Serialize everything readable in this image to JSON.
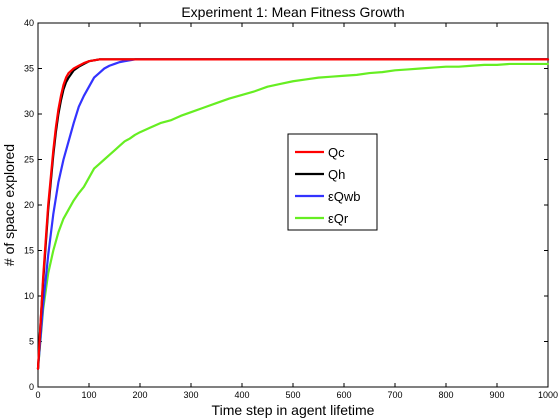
{
  "chart_data": {
    "type": "line",
    "title": "Experiment 1: Mean Fitness Growth",
    "xlabel": "Time step in agent lifetime",
    "ylabel": "# of space explored",
    "xlim": [
      0,
      1000
    ],
    "ylim": [
      0,
      40
    ],
    "xticks": [
      "0",
      "100",
      "200",
      "300",
      "400",
      "500",
      "600",
      "700",
      "800",
      "900",
      "1000"
    ],
    "yticks": [
      "0",
      "5",
      "10",
      "15",
      "20",
      "25",
      "30",
      "35",
      "40"
    ],
    "grid": false,
    "legend_position": "center-right",
    "series": [
      {
        "name": "Qc",
        "color": "#ff0000",
        "x": [
          0,
          5,
          10,
          15,
          20,
          25,
          30,
          35,
          40,
          45,
          50,
          55,
          60,
          70,
          80,
          90,
          100,
          110,
          120,
          150,
          200,
          300,
          500,
          1000
        ],
        "y": [
          2,
          7,
          12,
          16,
          20,
          23,
          26,
          28.5,
          30.5,
          32,
          33.2,
          34,
          34.5,
          35,
          35.3,
          35.6,
          35.8,
          35.9,
          36,
          36,
          36,
          36,
          36,
          36
        ]
      },
      {
        "name": "Qh",
        "color": "#000000",
        "x": [
          0,
          5,
          10,
          15,
          20,
          25,
          30,
          35,
          40,
          45,
          50,
          55,
          60,
          70,
          80,
          90,
          100,
          110,
          120,
          150,
          200,
          300,
          500,
          1000
        ],
        "y": [
          2,
          7,
          11.5,
          15.5,
          19.5,
          22.5,
          25.5,
          28,
          30,
          31.5,
          32.7,
          33.5,
          34,
          34.8,
          35.2,
          35.5,
          35.8,
          35.9,
          36,
          36,
          36,
          36,
          36,
          36
        ]
      },
      {
        "name": "εQwb",
        "color": "#3333ff",
        "x": [
          0,
          10,
          20,
          30,
          40,
          50,
          60,
          70,
          80,
          90,
          100,
          110,
          120,
          130,
          140,
          150,
          160,
          170,
          180,
          190,
          200,
          220,
          250,
          300,
          500,
          1000
        ],
        "y": [
          2,
          9,
          14.5,
          19,
          22.5,
          25,
          27,
          29,
          30.8,
          32,
          33,
          34,
          34.5,
          35,
          35.3,
          35.5,
          35.7,
          35.8,
          35.9,
          36,
          36,
          36,
          36,
          36,
          36,
          36
        ]
      },
      {
        "name": "εQr",
        "color": "#66ee22",
        "x": [
          0,
          10,
          20,
          30,
          40,
          50,
          60,
          70,
          80,
          90,
          100,
          110,
          120,
          130,
          140,
          150,
          160,
          170,
          180,
          190,
          200,
          220,
          240,
          260,
          280,
          300,
          325,
          350,
          375,
          400,
          425,
          450,
          475,
          500,
          525,
          550,
          575,
          600,
          625,
          650,
          675,
          700,
          725,
          750,
          775,
          800,
          825,
          850,
          875,
          900,
          925,
          950,
          975,
          1000
        ],
        "y": [
          2,
          8.5,
          12.5,
          15,
          17,
          18.5,
          19.5,
          20.5,
          21.3,
          22,
          23,
          24,
          24.5,
          25,
          25.5,
          26,
          26.5,
          27,
          27.3,
          27.7,
          28,
          28.5,
          29,
          29.3,
          29.8,
          30.2,
          30.7,
          31.2,
          31.7,
          32.1,
          32.5,
          33,
          33.3,
          33.6,
          33.8,
          34,
          34.1,
          34.2,
          34.3,
          34.5,
          34.6,
          34.8,
          34.9,
          35,
          35.1,
          35.2,
          35.2,
          35.3,
          35.4,
          35.4,
          35.5,
          35.5,
          35.5,
          35.5
        ]
      }
    ]
  }
}
